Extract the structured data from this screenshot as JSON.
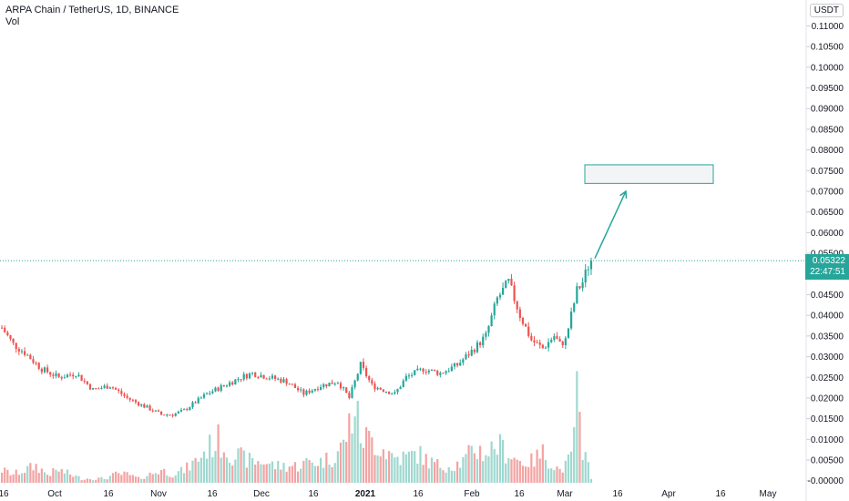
{
  "header": {
    "title": "ARPA Chain / TetherUS, 1D, BINANCE",
    "volume_label": "Vol"
  },
  "price_axis": {
    "unit": "USDT"
  },
  "last_price": {
    "value": "0.05322",
    "countdown": "22:47:51"
  },
  "colors": {
    "up": "#26a69a",
    "down": "#ef5350",
    "vol_up": "#9fd8cf",
    "vol_down": "#f3a3a2",
    "accent": "#26a69a"
  },
  "chart_data": {
    "type": "candlestick",
    "title": "ARPA Chain / TetherUS, 1D, BINANCE",
    "y_ticks": [
      "0.11000",
      "0.10500",
      "0.10000",
      "0.09500",
      "0.09000",
      "0.08500",
      "0.08000",
      "0.07500",
      "0.07000",
      "0.06500",
      "0.06000",
      "0.05500",
      "0.05000",
      "0.04500",
      "0.04000",
      "0.03500",
      "0.03000",
      "0.02500",
      "0.02000",
      "0.01500",
      "0.01000",
      "0.00500",
      "-0.00000"
    ],
    "x_ticks": [
      {
        "label": "16",
        "bold": false
      },
      {
        "label": "Oct",
        "bold": false
      },
      {
        "label": "16",
        "bold": false
      },
      {
        "label": "Nov",
        "bold": false
      },
      {
        "label": "16",
        "bold": false
      },
      {
        "label": "Dec",
        "bold": false
      },
      {
        "label": "16",
        "bold": false
      },
      {
        "label": "2021",
        "bold": true
      },
      {
        "label": "16",
        "bold": false
      },
      {
        "label": "Feb",
        "bold": false
      },
      {
        "label": "16",
        "bold": false
      },
      {
        "label": "Mar",
        "bold": false
      },
      {
        "label": "16",
        "bold": false
      },
      {
        "label": "Apr",
        "bold": false
      },
      {
        "label": "16",
        "bold": false
      },
      {
        "label": "May",
        "bold": false
      }
    ],
    "ylim": [
      -0.0005,
      0.1145
    ],
    "price_key_points": [
      [
        0,
        0.037
      ],
      [
        4,
        0.033
      ],
      [
        8,
        0.031
      ],
      [
        14,
        0.027
      ],
      [
        20,
        0.025
      ],
      [
        26,
        0.026
      ],
      [
        32,
        0.022
      ],
      [
        38,
        0.023
      ],
      [
        44,
        0.02
      ],
      [
        50,
        0.018
      ],
      [
        56,
        0.016
      ],
      [
        60,
        0.016
      ],
      [
        64,
        0.017
      ],
      [
        68,
        0.019
      ],
      [
        72,
        0.021
      ],
      [
        78,
        0.023
      ],
      [
        84,
        0.025
      ],
      [
        88,
        0.026
      ],
      [
        94,
        0.025
      ],
      [
        100,
        0.024
      ],
      [
        106,
        0.021
      ],
      [
        112,
        0.023
      ],
      [
        118,
        0.024
      ],
      [
        122,
        0.02
      ],
      [
        126,
        0.028
      ],
      [
        130,
        0.023
      ],
      [
        134,
        0.022
      ],
      [
        138,
        0.021
      ],
      [
        142,
        0.025
      ],
      [
        148,
        0.027
      ],
      [
        154,
        0.026
      ],
      [
        160,
        0.028
      ],
      [
        166,
        0.032
      ],
      [
        170,
        0.035
      ],
      [
        174,
        0.044
      ],
      [
        178,
        0.048
      ],
      [
        182,
        0.04
      ],
      [
        186,
        0.034
      ],
      [
        188,
        0.033
      ],
      [
        190,
        0.032
      ],
      [
        194,
        0.035
      ],
      [
        196,
        0.033
      ],
      [
        198,
        0.034
      ],
      [
        200,
        0.04
      ],
      [
        202,
        0.046
      ],
      [
        204,
        0.048
      ],
      [
        206,
        0.052
      ],
      [
        207,
        0.05322
      ]
    ],
    "volume_key_points": [
      [
        0,
        0.003
      ],
      [
        4,
        0.002
      ],
      [
        8,
        0.003
      ],
      [
        12,
        0.004
      ],
      [
        16,
        0.002
      ],
      [
        20,
        0.003
      ],
      [
        24,
        0.002
      ],
      [
        28,
        0.001
      ],
      [
        32,
        0.001
      ],
      [
        36,
        0.001
      ],
      [
        40,
        0.002
      ],
      [
        44,
        0.002
      ],
      [
        48,
        0.001
      ],
      [
        52,
        0.002
      ],
      [
        56,
        0.003
      ],
      [
        60,
        0.002
      ],
      [
        64,
        0.003
      ],
      [
        68,
        0.005
      ],
      [
        72,
        0.008
      ],
      [
        76,
        0.01
      ],
      [
        80,
        0.007
      ],
      [
        84,
        0.006
      ],
      [
        88,
        0.005
      ],
      [
        92,
        0.005
      ],
      [
        96,
        0.004
      ],
      [
        100,
        0.004
      ],
      [
        104,
        0.004
      ],
      [
        108,
        0.005
      ],
      [
        112,
        0.005
      ],
      [
        116,
        0.006
      ],
      [
        120,
        0.009
      ],
      [
        124,
        0.018
      ],
      [
        126,
        0.011
      ],
      [
        130,
        0.01
      ],
      [
        134,
        0.008
      ],
      [
        138,
        0.006
      ],
      [
        142,
        0.006
      ],
      [
        146,
        0.007
      ],
      [
        150,
        0.005
      ],
      [
        154,
        0.004
      ],
      [
        158,
        0.004
      ],
      [
        162,
        0.005
      ],
      [
        166,
        0.008
      ],
      [
        170,
        0.007
      ],
      [
        174,
        0.009
      ],
      [
        178,
        0.007
      ],
      [
        182,
        0.005
      ],
      [
        186,
        0.005
      ],
      [
        190,
        0.007
      ],
      [
        194,
        0.004
      ],
      [
        196,
        0.003
      ],
      [
        198,
        0.004
      ],
      [
        200,
        0.006
      ],
      [
        202,
        0.022
      ],
      [
        204,
        0.004
      ],
      [
        206,
        0.008
      ],
      [
        207,
        0.0008
      ]
    ],
    "projection": {
      "target_zone": [
        0.0719,
        0.0764
      ]
    }
  }
}
